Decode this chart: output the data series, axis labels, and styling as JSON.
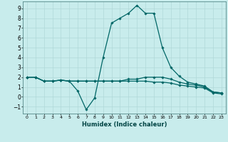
{
  "xlabel": "Humidex (Indice chaleur)",
  "background_color": "#c8ecec",
  "grid_color": "#b0d8d8",
  "line_color": "#006666",
  "xlim": [
    -0.5,
    23.5
  ],
  "ylim": [
    -1.7,
    9.7
  ],
  "xticks": [
    0,
    1,
    2,
    3,
    4,
    5,
    6,
    7,
    8,
    9,
    10,
    11,
    12,
    13,
    14,
    15,
    16,
    17,
    18,
    19,
    20,
    21,
    22,
    23
  ],
  "yticks": [
    -1,
    0,
    1,
    2,
    3,
    4,
    5,
    6,
    7,
    8,
    9
  ],
  "lines": [
    {
      "x": [
        0,
        1,
        2,
        3,
        4,
        5,
        6,
        7,
        8,
        9,
        10,
        11,
        12,
        13,
        14,
        15,
        16,
        17,
        18,
        19,
        20,
        21,
        22,
        23
      ],
      "y": [
        2.0,
        2.0,
        1.6,
        1.6,
        1.7,
        1.6,
        0.6,
        -1.3,
        -0.1,
        4.0,
        7.5,
        8.0,
        8.5,
        9.3,
        8.5,
        8.5,
        5.0,
        3.0,
        2.1,
        1.5,
        1.3,
        1.1,
        0.5,
        0.4
      ]
    },
    {
      "x": [
        0,
        1,
        2,
        3,
        4,
        5,
        6,
        7,
        8,
        9,
        10,
        11,
        12,
        13,
        14,
        15,
        16,
        17,
        18,
        19,
        20,
        21,
        22,
        23
      ],
      "y": [
        2.0,
        2.0,
        1.6,
        1.6,
        1.7,
        1.6,
        1.6,
        1.6,
        1.6,
        1.6,
        1.6,
        1.6,
        1.8,
        1.8,
        2.0,
        2.0,
        2.0,
        1.8,
        1.5,
        1.3,
        1.2,
        1.0,
        0.5,
        0.4
      ]
    },
    {
      "x": [
        0,
        1,
        2,
        3,
        4,
        5,
        6,
        7,
        8,
        9,
        10,
        11,
        12,
        13,
        14,
        15,
        16,
        17,
        18,
        19,
        20,
        21,
        22,
        23
      ],
      "y": [
        2.0,
        2.0,
        1.6,
        1.6,
        1.7,
        1.6,
        1.6,
        1.6,
        1.6,
        1.6,
        1.6,
        1.6,
        1.6,
        1.6,
        1.6,
        1.5,
        1.5,
        1.4,
        1.2,
        1.1,
        1.0,
        0.9,
        0.4,
        0.3
      ]
    }
  ]
}
